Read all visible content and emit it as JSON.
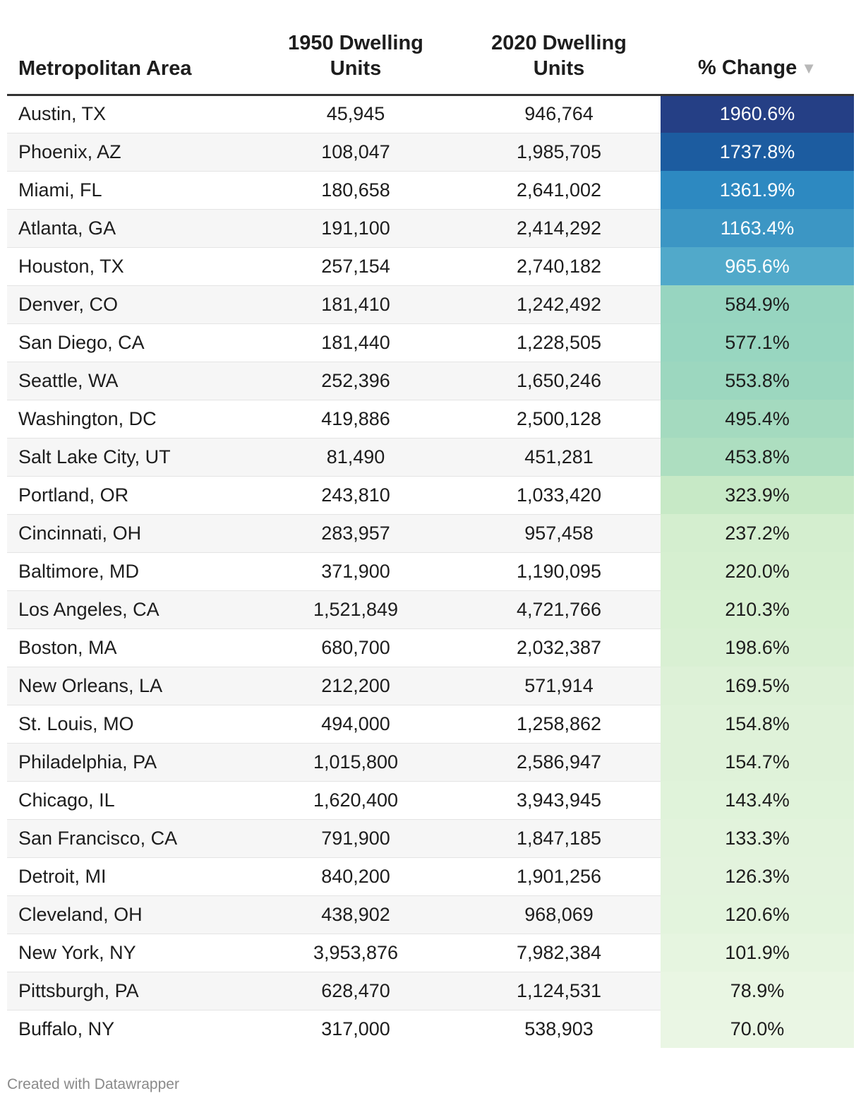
{
  "table": {
    "headers": {
      "area": "Metropolitan Area",
      "units1950_line1": "1950 Dwelling",
      "units1950_line2": "Units",
      "units2020_line1": "2020 Dwelling",
      "units2020_line2": "Units",
      "change": "% Change",
      "sort_icon": "▼"
    },
    "sort_icon_name": "sort-descending-icon"
  },
  "colors": {
    "scale_min": "#eaf6e4",
    "scale_mid": "#92d2c0",
    "scale_high": "#2a87c0",
    "scale_max": "#253f85"
  },
  "footer": "Created with Datawrapper",
  "chart_data": {
    "type": "table",
    "columns": [
      "Metropolitan Area",
      "1950 Dwelling Units",
      "2020 Dwelling Units",
      "% Change"
    ],
    "sorted_by": "% Change",
    "rows": [
      {
        "area": "Austin, TX",
        "u1950": "45,945",
        "u2020": "946,764",
        "change": "1960.6%",
        "change_value": 1960.6
      },
      {
        "area": "Phoenix, AZ",
        "u1950": "108,047",
        "u2020": "1,985,705",
        "change": "1737.8%",
        "change_value": 1737.8
      },
      {
        "area": "Miami, FL",
        "u1950": "180,658",
        "u2020": "2,641,002",
        "change": "1361.9%",
        "change_value": 1361.9
      },
      {
        "area": "Atlanta, GA",
        "u1950": "191,100",
        "u2020": "2,414,292",
        "change": "1163.4%",
        "change_value": 1163.4
      },
      {
        "area": "Houston, TX",
        "u1950": "257,154",
        "u2020": "2,740,182",
        "change": "965.6%",
        "change_value": 965.6
      },
      {
        "area": "Denver, CO",
        "u1950": "181,410",
        "u2020": "1,242,492",
        "change": "584.9%",
        "change_value": 584.9
      },
      {
        "area": "San Diego, CA",
        "u1950": "181,440",
        "u2020": "1,228,505",
        "change": "577.1%",
        "change_value": 577.1
      },
      {
        "area": "Seattle, WA",
        "u1950": "252,396",
        "u2020": "1,650,246",
        "change": "553.8%",
        "change_value": 553.8
      },
      {
        "area": "Washington, DC",
        "u1950": "419,886",
        "u2020": "2,500,128",
        "change": "495.4%",
        "change_value": 495.4
      },
      {
        "area": "Salt Lake City, UT",
        "u1950": "81,490",
        "u2020": "451,281",
        "change": "453.8%",
        "change_value": 453.8
      },
      {
        "area": "Portland, OR",
        "u1950": "243,810",
        "u2020": "1,033,420",
        "change": "323.9%",
        "change_value": 323.9
      },
      {
        "area": "Cincinnati, OH",
        "u1950": "283,957",
        "u2020": "957,458",
        "change": "237.2%",
        "change_value": 237.2
      },
      {
        "area": "Baltimore, MD",
        "u1950": "371,900",
        "u2020": "1,190,095",
        "change": "220.0%",
        "change_value": 220.0
      },
      {
        "area": "Los Angeles, CA",
        "u1950": "1,521,849",
        "u2020": "4,721,766",
        "change": "210.3%",
        "change_value": 210.3
      },
      {
        "area": "Boston, MA",
        "u1950": "680,700",
        "u2020": "2,032,387",
        "change": "198.6%",
        "change_value": 198.6
      },
      {
        "area": "New Orleans, LA",
        "u1950": "212,200",
        "u2020": "571,914",
        "change": "169.5%",
        "change_value": 169.5
      },
      {
        "area": "St. Louis, MO",
        "u1950": "494,000",
        "u2020": "1,258,862",
        "change": "154.8%",
        "change_value": 154.8
      },
      {
        "area": "Philadelphia, PA",
        "u1950": "1,015,800",
        "u2020": "2,586,947",
        "change": "154.7%",
        "change_value": 154.7
      },
      {
        "area": "Chicago, IL",
        "u1950": "1,620,400",
        "u2020": "3,943,945",
        "change": "143.4%",
        "change_value": 143.4
      },
      {
        "area": "San Francisco, CA",
        "u1950": "791,900",
        "u2020": "1,847,185",
        "change": "133.3%",
        "change_value": 133.3
      },
      {
        "area": "Detroit, MI",
        "u1950": "840,200",
        "u2020": "1,901,256",
        "change": "126.3%",
        "change_value": 126.3
      },
      {
        "area": "Cleveland, OH",
        "u1950": "438,902",
        "u2020": "968,069",
        "change": "120.6%",
        "change_value": 120.6
      },
      {
        "area": "New York, NY",
        "u1950": "3,953,876",
        "u2020": "7,982,384",
        "change": "101.9%",
        "change_value": 101.9
      },
      {
        "area": "Pittsburgh, PA",
        "u1950": "628,470",
        "u2020": "1,124,531",
        "change": "78.9%",
        "change_value": 78.9
      },
      {
        "area": "Buffalo, NY",
        "u1950": "317,000",
        "u2020": "538,903",
        "change": "70.0%",
        "change_value": 70.0
      }
    ]
  }
}
